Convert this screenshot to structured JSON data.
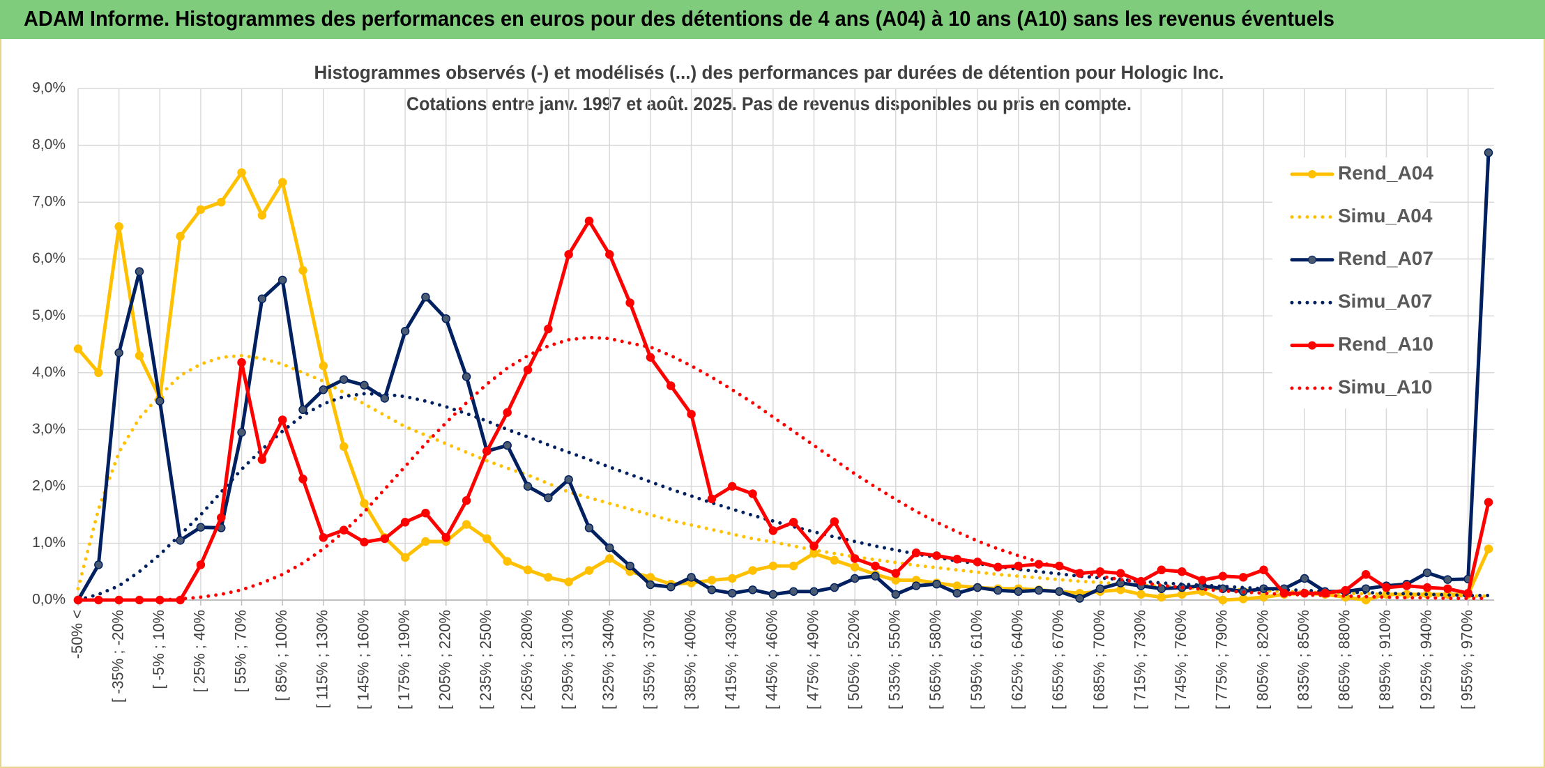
{
  "header": {
    "title": "ADAM Informe. Histogrammes des performances en euros pour des détentions de 4 ans (A04) à 10 ans (A10) sans les revenus éventuels"
  },
  "chart_data": {
    "type": "line",
    "title": [
      "Histogrammes observés (-) et modélisés (...) des performances par durées de détention pour Hologic Inc.",
      "Cotations entre janv. 1997 et août. 2025. Pas de revenus disponibles ou pris en compte."
    ],
    "categories": [
      "-50% <",
      null,
      "[ -35% ; -20%",
      null,
      "[ -5% ; 10%",
      null,
      "[ 25% ; 40%",
      null,
      "[ 55% ; 70%",
      null,
      "[ 85% ; 100%",
      null,
      "[ 115% ; 130%",
      null,
      "[ 145% ; 160%",
      null,
      "[ 175% ; 190%",
      null,
      "[ 205% ; 220%",
      null,
      "[ 235% ; 250%",
      null,
      "[ 265% ; 280%",
      null,
      "[ 295% ; 310%",
      null,
      "[ 325% ; 340%",
      null,
      "[ 355% ; 370%",
      null,
      "[ 385% ; 400%",
      null,
      "[ 415% ; 430%",
      null,
      "[ 445% ; 460%",
      null,
      "[ 475% ; 490%",
      null,
      "[ 505% ; 520%",
      null,
      "[ 535% ; 550%",
      null,
      "[ 565% ; 580%",
      null,
      "[ 595% ; 610%",
      null,
      "[ 625% ; 640%",
      null,
      "[ 655% ; 670%",
      null,
      "[ 685% ; 700%",
      null,
      "[ 715% ; 730%",
      null,
      "[ 745% ; 760%",
      null,
      "[ 775% ; 790%",
      null,
      "[ 805% ; 820%",
      null,
      "[ 835% ; 850%",
      null,
      "[ 865% ; 880%",
      null,
      "[ 895% ; 910%",
      null,
      "[ 925% ; 940%",
      null,
      "[ 955% ; 970%",
      null
    ],
    "series": [
      {
        "name": "Rend_A04",
        "color": "#ffc000",
        "style": "solid",
        "values": [
          4.42,
          4.0,
          6.57,
          4.3,
          3.55,
          6.4,
          6.87,
          7.0,
          7.52,
          6.77,
          7.35,
          5.8,
          4.12,
          2.7,
          1.7,
          1.1,
          0.75,
          1.03,
          1.03,
          1.33,
          1.08,
          0.68,
          0.53,
          0.4,
          0.32,
          0.52,
          0.73,
          0.5,
          0.4,
          0.28,
          0.3,
          0.35,
          0.38,
          0.52,
          0.6,
          0.6,
          0.82,
          0.7,
          0.58,
          0.45,
          0.35,
          0.35,
          0.3,
          0.25,
          0.22,
          0.2,
          0.2,
          0.18,
          0.15,
          0.12,
          0.15,
          0.18,
          0.1,
          0.05,
          0.1,
          0.15,
          0.0,
          0.02,
          0.05,
          0.1,
          0.12,
          0.1,
          0.05,
          0.0,
          0.1,
          0.1,
          0.1,
          0.1,
          0.1,
          0.9
        ]
      },
      {
        "name": "Simu_A04",
        "color": "#ffc000",
        "style": "dotted",
        "values": [
          0.2,
          1.6,
          2.6,
          3.2,
          3.6,
          3.95,
          4.15,
          4.27,
          4.3,
          4.25,
          4.15,
          4.0,
          3.85,
          3.65,
          3.45,
          3.25,
          3.05,
          2.9,
          2.75,
          2.6,
          2.45,
          2.32,
          2.2,
          2.05,
          1.9,
          1.8,
          1.7,
          1.6,
          1.5,
          1.4,
          1.32,
          1.24,
          1.16,
          1.08,
          1.02,
          0.95,
          0.88,
          0.82,
          0.76,
          0.71,
          0.66,
          0.61,
          0.57,
          0.53,
          0.49,
          0.45,
          0.42,
          0.39,
          0.36,
          0.33,
          0.31,
          0.28,
          0.26,
          0.24,
          0.22,
          0.21,
          0.19,
          0.18,
          0.16,
          0.15,
          0.14,
          0.13,
          0.12,
          0.11,
          0.1,
          0.09,
          0.08,
          0.08,
          0.07,
          0.07
        ]
      },
      {
        "name": "Rend_A07",
        "color": "#002060",
        "style": "solid",
        "values": [
          0.0,
          0.62,
          4.35,
          5.78,
          3.5,
          1.05,
          1.28,
          1.27,
          2.95,
          5.3,
          5.63,
          3.35,
          3.7,
          3.88,
          3.78,
          3.55,
          4.73,
          5.33,
          4.95,
          3.93,
          2.62,
          2.72,
          2.0,
          1.8,
          2.12,
          1.27,
          0.92,
          0.6,
          0.27,
          0.23,
          0.4,
          0.18,
          0.12,
          0.18,
          0.1,
          0.15,
          0.15,
          0.22,
          0.38,
          0.42,
          0.1,
          0.25,
          0.28,
          0.12,
          0.22,
          0.17,
          0.15,
          0.17,
          0.15,
          0.03,
          0.2,
          0.3,
          0.25,
          0.2,
          0.22,
          0.25,
          0.2,
          0.15,
          0.2,
          0.2,
          0.38,
          0.15,
          0.15,
          0.2,
          0.25,
          0.28,
          0.48,
          0.36,
          0.37,
          7.87
        ]
      },
      {
        "name": "Simu_A07",
        "color": "#002060",
        "style": "dotted",
        "values": [
          0.0,
          0.1,
          0.25,
          0.5,
          0.8,
          1.15,
          1.5,
          1.9,
          2.3,
          2.65,
          2.97,
          3.25,
          3.45,
          3.58,
          3.63,
          3.62,
          3.58,
          3.5,
          3.4,
          3.28,
          3.15,
          3.0,
          2.87,
          2.73,
          2.6,
          2.47,
          2.34,
          2.21,
          2.08,
          1.95,
          1.83,
          1.71,
          1.6,
          1.49,
          1.39,
          1.29,
          1.2,
          1.11,
          1.03,
          0.95,
          0.88,
          0.81,
          0.75,
          0.69,
          0.64,
          0.59,
          0.54,
          0.5,
          0.46,
          0.42,
          0.39,
          0.36,
          0.33,
          0.3,
          0.28,
          0.26,
          0.24,
          0.22,
          0.2,
          0.18,
          0.17,
          0.15,
          0.14,
          0.13,
          0.12,
          0.11,
          0.1,
          0.09,
          0.08,
          0.08
        ]
      },
      {
        "name": "Rend_A10",
        "color": "#ff0000",
        "style": "solid",
        "values": [
          0,
          0,
          0,
          0,
          0,
          0,
          0.62,
          1.45,
          4.18,
          2.47,
          3.17,
          2.13,
          1.1,
          1.23,
          1.02,
          1.08,
          1.37,
          1.53,
          1.1,
          1.75,
          2.62,
          3.3,
          4.05,
          4.77,
          6.08,
          6.67,
          6.08,
          5.23,
          4.27,
          3.77,
          3.27,
          1.78,
          2.0,
          1.87,
          1.22,
          1.37,
          0.95,
          1.38,
          0.73,
          0.6,
          0.47,
          0.83,
          0.78,
          0.72,
          0.67,
          0.58,
          0.6,
          0.63,
          0.6,
          0.47,
          0.5,
          0.47,
          0.33,
          0.53,
          0.5,
          0.35,
          0.42,
          0.4,
          0.53,
          0.12,
          0.12,
          0.12,
          0.17,
          0.45,
          0.22,
          0.25,
          0.22,
          0.2,
          0.12,
          1.72
        ]
      },
      {
        "name": "Simu_A10",
        "color": "#ff0000",
        "style": "dotted",
        "values": [
          0,
          0,
          0,
          0,
          0,
          0.02,
          0.05,
          0.1,
          0.18,
          0.3,
          0.45,
          0.65,
          0.9,
          1.2,
          1.55,
          1.95,
          2.35,
          2.75,
          3.12,
          3.47,
          3.8,
          4.08,
          4.3,
          4.47,
          4.58,
          4.62,
          4.6,
          4.52,
          4.45,
          4.3,
          4.12,
          3.92,
          3.7,
          3.47,
          3.22,
          2.97,
          2.72,
          2.47,
          2.22,
          1.99,
          1.77,
          1.56,
          1.37,
          1.2,
          1.04,
          0.9,
          0.78,
          0.67,
          0.57,
          0.49,
          0.42,
          0.36,
          0.31,
          0.26,
          0.22,
          0.19,
          0.16,
          0.14,
          0.12,
          0.1,
          0.09,
          0.08,
          0.07,
          0.06,
          0.05,
          0.04,
          0.04,
          0.03,
          0.03,
          0.03
        ]
      }
    ],
    "ylim": [
      0,
      9
    ],
    "yticks": [
      {
        "value": 0,
        "label": "0,0%"
      },
      {
        "value": 1,
        "label": "1,0%"
      },
      {
        "value": 2,
        "label": "2,0%"
      },
      {
        "value": 3,
        "label": "3,0%"
      },
      {
        "value": 4,
        "label": "4,0%"
      },
      {
        "value": 5,
        "label": "5,0%"
      },
      {
        "value": 6,
        "label": "6,0%"
      },
      {
        "value": 7,
        "label": "7,0%"
      },
      {
        "value": 8,
        "label": "8,0%"
      },
      {
        "value": 9,
        "label": "9,0%"
      }
    ],
    "grid": true,
    "legend": "right"
  }
}
